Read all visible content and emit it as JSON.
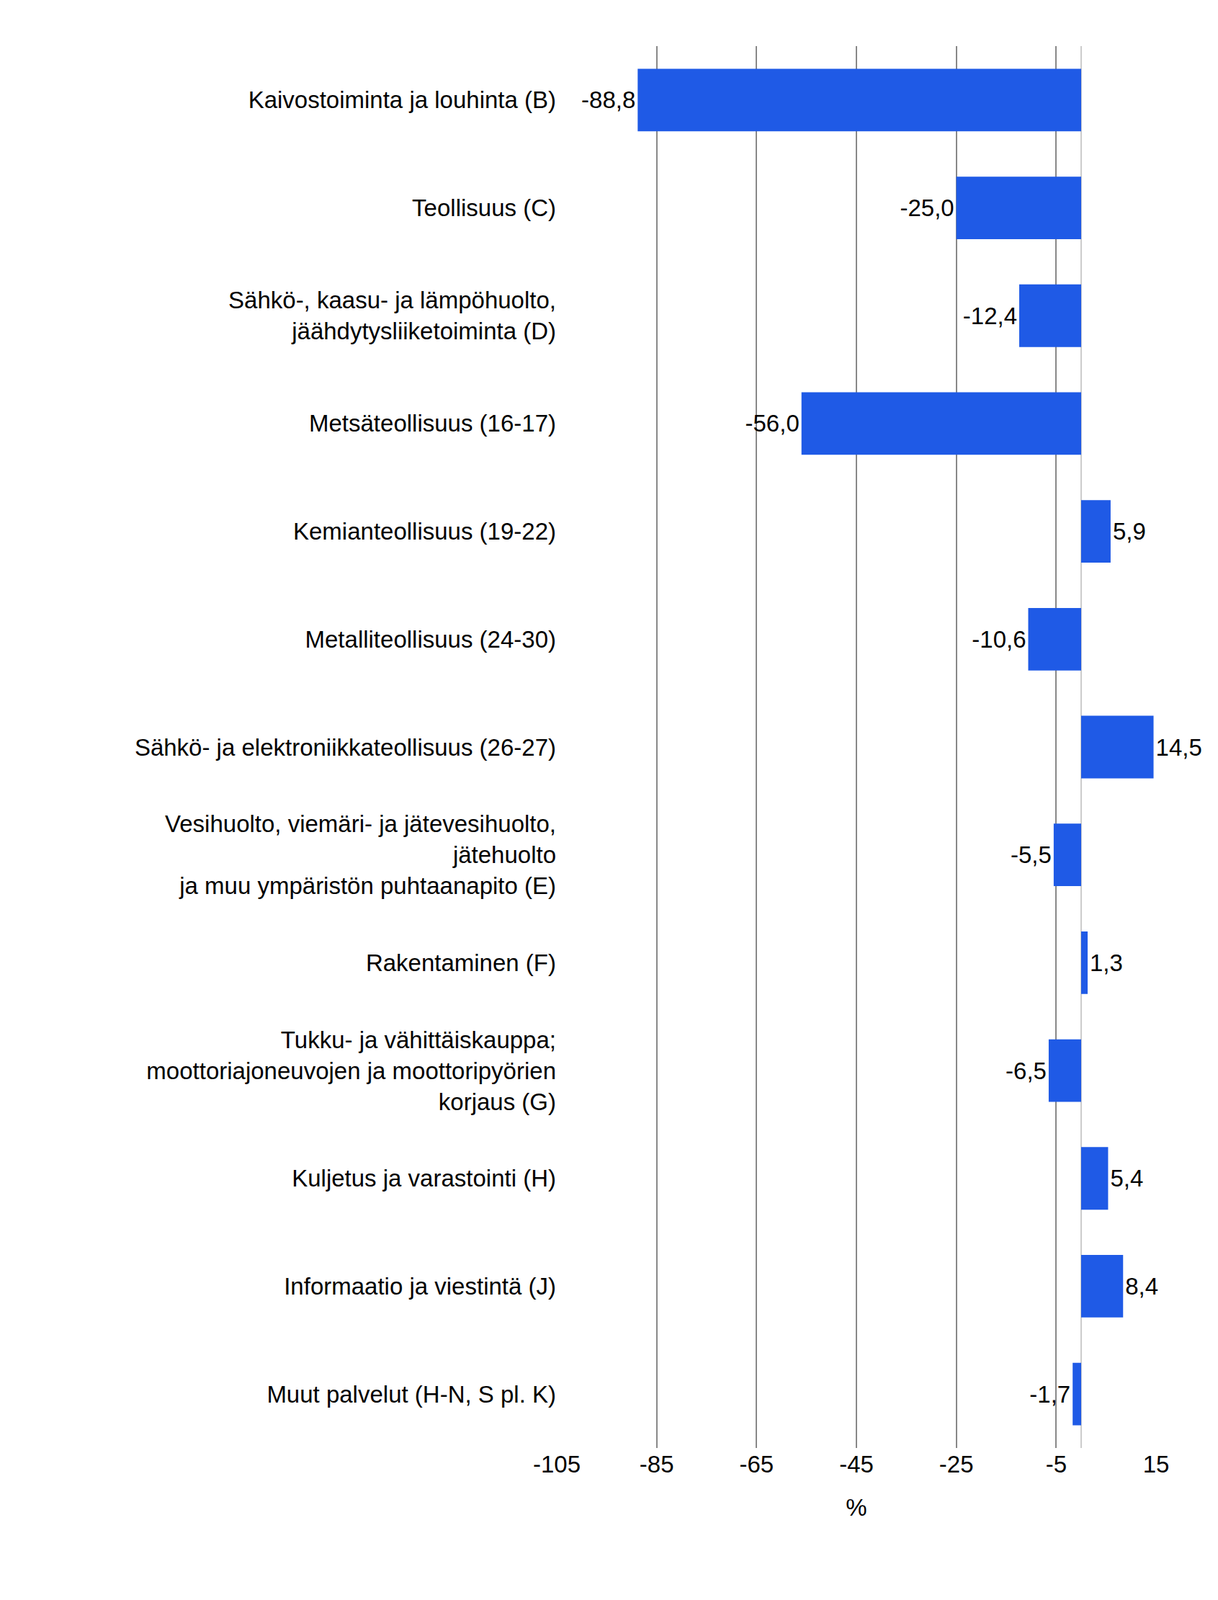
{
  "chart_data": {
    "type": "bar",
    "orientation": "horizontal",
    "categories": [
      "Kaivostoiminta ja louhinta (B)",
      "Teollisuus (C)",
      "Sähkö-, kaasu- ja lämpöhuolto,\njäähdytysliiketoiminta (D)",
      "Metsäteollisuus (16-17)",
      "Kemianteollisuus (19-22)",
      "Metalliteollisuus (24-30)",
      "Sähkö- ja elektroniikkateollisuus (26-27)",
      "Vesihuolto, viemäri- ja jätevesihuolto,\njätehuolto\nja muu ympäristön puhtaanapito (E)",
      "Rakentaminen (F)",
      "Tukku- ja vähittäiskauppa;\nmoottoriajoneuvojen ja moottoripyörien\nkorjaus (G)",
      "Kuljetus ja varastointi (H)",
      "Informaatio ja viestintä (J)",
      "Muut palvelut (H-N, S pl. K)"
    ],
    "values": [
      -88.8,
      -25.0,
      -12.4,
      -56.0,
      5.9,
      -10.6,
      14.5,
      -5.5,
      1.3,
      -6.5,
      5.4,
      8.4,
      -1.7
    ],
    "value_labels": [
      "-88,8",
      "-25,0",
      "-12,4",
      "-56,0",
      "5,9",
      "-10,6",
      "14,5",
      "-5,5",
      "1,3",
      "-6,5",
      "5,4",
      "8,4",
      "-1,7"
    ],
    "data_labels": true,
    "color": "#1f5ae6",
    "xlabel": "%",
    "xlim": [
      -105,
      15
    ],
    "xticks": [
      -105,
      -85,
      -65,
      -45,
      -25,
      -5,
      15
    ],
    "grid": true
  }
}
